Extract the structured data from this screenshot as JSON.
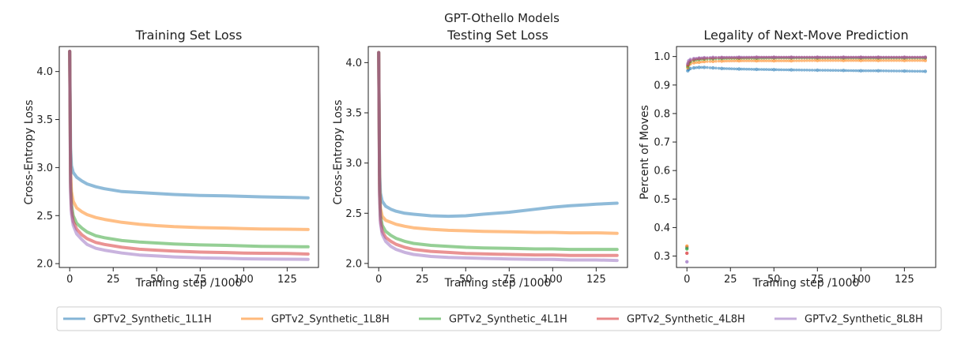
{
  "suptitle": "GPT-Othello Models",
  "colors": {
    "GPTv2_Synthetic_1L1H": "#1f77b4",
    "GPTv2_Synthetic_1L8H": "#ff7f0e",
    "GPTv2_Synthetic_4L1H": "#2ca02c",
    "GPTv2_Synthetic_4L8H": "#d62728",
    "GPTv2_Synthetic_8L8H": "#9467bd"
  },
  "legend": {
    "placement": "bottom",
    "entries": [
      "GPTv2_Synthetic_1L1H",
      "GPTv2_Synthetic_1L8H",
      "GPTv2_Synthetic_4L1H",
      "GPTv2_Synthetic_4L8H",
      "GPTv2_Synthetic_8L8H"
    ]
  },
  "chart_data": [
    {
      "type": "line",
      "title": "Training Set Loss",
      "xlabel": "Training step /1000",
      "ylabel": "Cross-Entropy Loss",
      "xlim": [
        -6,
        143
      ],
      "ylim": [
        1.96,
        4.26
      ],
      "xticks": [
        0,
        25,
        50,
        75,
        100,
        125
      ],
      "yticks": [
        2.0,
        2.5,
        3.0,
        3.5,
        4.0
      ],
      "ytick_labels": [
        "2.0",
        "2.5",
        "3.0",
        "3.5",
        "4.0"
      ],
      "grid": false,
      "series": [
        {
          "name": "GPTv2_Synthetic_1L1H",
          "x": [
            0,
            0.5,
            1,
            2,
            4,
            7,
            10,
            15,
            20,
            30,
            40,
            50,
            60,
            75,
            90,
            100,
            110,
            125,
            137
          ],
          "y": [
            4.21,
            3.2,
            3.02,
            2.95,
            2.9,
            2.86,
            2.83,
            2.8,
            2.78,
            2.75,
            2.74,
            2.73,
            2.72,
            2.71,
            2.705,
            2.7,
            2.695,
            2.69,
            2.685
          ]
        },
        {
          "name": "GPTv2_Synthetic_1L8H",
          "x": [
            0,
            0.5,
            1,
            2,
            4,
            7,
            10,
            15,
            20,
            30,
            40,
            50,
            60,
            75,
            90,
            100,
            110,
            125,
            137
          ],
          "y": [
            4.21,
            2.95,
            2.75,
            2.65,
            2.58,
            2.54,
            2.51,
            2.48,
            2.46,
            2.43,
            2.41,
            2.395,
            2.385,
            2.375,
            2.37,
            2.365,
            2.36,
            2.358,
            2.355
          ]
        },
        {
          "name": "GPTv2_Synthetic_4L1H",
          "x": [
            0,
            0.5,
            1,
            2,
            4,
            7,
            10,
            15,
            20,
            30,
            40,
            50,
            60,
            75,
            90,
            100,
            110,
            125,
            137
          ],
          "y": [
            4.21,
            2.85,
            2.62,
            2.5,
            2.42,
            2.37,
            2.33,
            2.29,
            2.27,
            2.24,
            2.225,
            2.215,
            2.205,
            2.195,
            2.19,
            2.185,
            2.18,
            2.178,
            2.175
          ]
        },
        {
          "name": "GPTv2_Synthetic_4L8H",
          "x": [
            0,
            0.5,
            1,
            2,
            4,
            7,
            10,
            15,
            20,
            30,
            40,
            50,
            60,
            75,
            90,
            100,
            110,
            125,
            137
          ],
          "y": [
            4.21,
            2.8,
            2.56,
            2.44,
            2.36,
            2.3,
            2.26,
            2.22,
            2.2,
            2.17,
            2.15,
            2.14,
            2.13,
            2.12,
            2.115,
            2.11,
            2.108,
            2.105,
            2.1
          ]
        },
        {
          "name": "GPTv2_Synthetic_8L8H",
          "x": [
            0,
            0.5,
            1,
            2,
            4,
            7,
            10,
            15,
            20,
            30,
            40,
            50,
            60,
            75,
            90,
            100,
            110,
            125,
            137
          ],
          "y": [
            4.21,
            2.75,
            2.52,
            2.4,
            2.31,
            2.25,
            2.2,
            2.16,
            2.14,
            2.11,
            2.09,
            2.08,
            2.07,
            2.06,
            2.055,
            2.05,
            2.048,
            2.046,
            2.045
          ]
        }
      ]
    },
    {
      "type": "line",
      "title": "Testing Set Loss",
      "xlabel": "Training step /1000",
      "ylabel": "Cross-Entropy Loss",
      "xlim": [
        -6,
        143
      ],
      "ylim": [
        1.96,
        4.16
      ],
      "xticks": [
        0,
        25,
        50,
        75,
        100,
        125
      ],
      "yticks": [
        2.0,
        2.5,
        3.0,
        3.5,
        4.0
      ],
      "ytick_labels": [
        "2.0",
        "2.5",
        "3.0",
        "3.5",
        "4.0"
      ],
      "grid": false,
      "series": [
        {
          "name": "GPTv2_Synthetic_1L1H",
          "x": [
            0,
            0.5,
            1,
            2,
            4,
            7,
            10,
            15,
            20,
            30,
            40,
            50,
            60,
            75,
            90,
            100,
            110,
            120,
            125,
            137
          ],
          "y": [
            4.1,
            2.9,
            2.7,
            2.62,
            2.57,
            2.54,
            2.52,
            2.5,
            2.49,
            2.475,
            2.47,
            2.475,
            2.49,
            2.51,
            2.54,
            2.56,
            2.575,
            2.585,
            2.59,
            2.6
          ]
        },
        {
          "name": "GPTv2_Synthetic_1L8H",
          "x": [
            0,
            0.5,
            1,
            2,
            4,
            7,
            10,
            15,
            20,
            30,
            40,
            50,
            60,
            75,
            90,
            100,
            110,
            125,
            137
          ],
          "y": [
            4.1,
            2.8,
            2.55,
            2.47,
            2.43,
            2.41,
            2.39,
            2.37,
            2.355,
            2.34,
            2.33,
            2.325,
            2.32,
            2.315,
            2.31,
            2.31,
            2.305,
            2.305,
            2.3
          ]
        },
        {
          "name": "GPTv2_Synthetic_4L1H",
          "x": [
            0,
            0.5,
            1,
            2,
            4,
            7,
            10,
            15,
            20,
            30,
            40,
            50,
            60,
            75,
            90,
            100,
            110,
            125,
            137
          ],
          "y": [
            4.1,
            2.75,
            2.48,
            2.38,
            2.32,
            2.28,
            2.25,
            2.22,
            2.2,
            2.18,
            2.17,
            2.16,
            2.155,
            2.15,
            2.145,
            2.145,
            2.14,
            2.14,
            2.14
          ]
        },
        {
          "name": "GPTv2_Synthetic_4L8H",
          "x": [
            0,
            0.5,
            1,
            2,
            4,
            7,
            10,
            15,
            20,
            30,
            40,
            50,
            60,
            75,
            90,
            100,
            110,
            125,
            137
          ],
          "y": [
            4.1,
            2.7,
            2.43,
            2.32,
            2.26,
            2.22,
            2.19,
            2.16,
            2.14,
            2.12,
            2.11,
            2.1,
            2.095,
            2.09,
            2.085,
            2.085,
            2.08,
            2.08,
            2.08
          ]
        },
        {
          "name": "GPTv2_Synthetic_8L8H",
          "x": [
            0,
            0.5,
            1,
            2,
            4,
            7,
            10,
            15,
            20,
            30,
            40,
            50,
            60,
            75,
            90,
            100,
            110,
            125,
            137
          ],
          "y": [
            4.1,
            2.68,
            2.4,
            2.29,
            2.22,
            2.17,
            2.14,
            2.11,
            2.09,
            2.07,
            2.06,
            2.055,
            2.05,
            2.045,
            2.04,
            2.04,
            2.035,
            2.035,
            2.03
          ]
        }
      ]
    },
    {
      "type": "scatter",
      "title": "Legality of Next-Move Prediction",
      "xlabel": "Training step /1000",
      "ylabel": "Percent of Moves",
      "xlim": [
        -6,
        143
      ],
      "ylim": [
        0.26,
        1.035
      ],
      "xticks": [
        0,
        25,
        50,
        75,
        100,
        125
      ],
      "yticks": [
        0.3,
        0.4,
        0.5,
        0.6,
        0.7,
        0.8,
        0.9,
        1.0
      ],
      "ytick_labels": [
        "0.3",
        "0.4",
        "0.5",
        "0.6",
        "0.7",
        "0.8",
        "0.9",
        "1.0"
      ],
      "grid": false,
      "series": [
        {
          "name": "GPTv2_Synthetic_1L1H",
          "x": [
            0,
            0.5,
            1,
            2,
            4,
            7,
            10,
            15,
            20,
            30,
            40,
            50,
            60,
            75,
            90,
            100,
            110,
            125,
            137
          ],
          "y": [
            0.33,
            0.95,
            0.955,
            0.958,
            0.96,
            0.962,
            0.962,
            0.96,
            0.958,
            0.956,
            0.955,
            0.954,
            0.953,
            0.952,
            0.951,
            0.95,
            0.95,
            0.949,
            0.948
          ]
        },
        {
          "name": "GPTv2_Synthetic_1L8H",
          "x": [
            0,
            0.5,
            1,
            2,
            4,
            7,
            10,
            15,
            20,
            30,
            40,
            50,
            60,
            75,
            90,
            100,
            110,
            125,
            137
          ],
          "y": [
            0.335,
            0.96,
            0.97,
            0.975,
            0.978,
            0.98,
            0.982,
            0.983,
            0.984,
            0.985,
            0.985,
            0.985,
            0.985,
            0.986,
            0.986,
            0.986,
            0.986,
            0.986,
            0.986
          ]
        },
        {
          "name": "GPTv2_Synthetic_4L1H",
          "x": [
            0,
            0.5,
            1,
            2,
            4,
            7,
            10,
            15,
            20,
            30,
            40,
            50,
            60,
            75,
            90,
            100,
            110,
            125,
            137
          ],
          "y": [
            0.325,
            0.965,
            0.975,
            0.982,
            0.987,
            0.99,
            0.991,
            0.992,
            0.993,
            0.994,
            0.994,
            0.995,
            0.995,
            0.995,
            0.995,
            0.995,
            0.995,
            0.995,
            0.995
          ]
        },
        {
          "name": "GPTv2_Synthetic_4L8H",
          "x": [
            0,
            0.5,
            1,
            2,
            4,
            7,
            10,
            15,
            20,
            30,
            40,
            50,
            60,
            75,
            90,
            100,
            110,
            125,
            137
          ],
          "y": [
            0.31,
            0.97,
            0.98,
            0.986,
            0.99,
            0.993,
            0.994,
            0.995,
            0.996,
            0.996,
            0.997,
            0.997,
            0.997,
            0.997,
            0.997,
            0.997,
            0.997,
            0.997,
            0.997
          ]
        },
        {
          "name": "GPTv2_Synthetic_8L8H",
          "x": [
            0,
            0.5,
            1,
            2,
            4,
            7,
            10,
            15,
            20,
            30,
            40,
            50,
            60,
            75,
            90,
            100,
            110,
            125,
            137
          ],
          "y": [
            0.28,
            0.975,
            0.985,
            0.99,
            0.993,
            0.995,
            0.996,
            0.997,
            0.997,
            0.998,
            0.998,
            0.998,
            0.998,
            0.998,
            0.998,
            0.998,
            0.998,
            0.998,
            0.998
          ]
        }
      ]
    }
  ]
}
